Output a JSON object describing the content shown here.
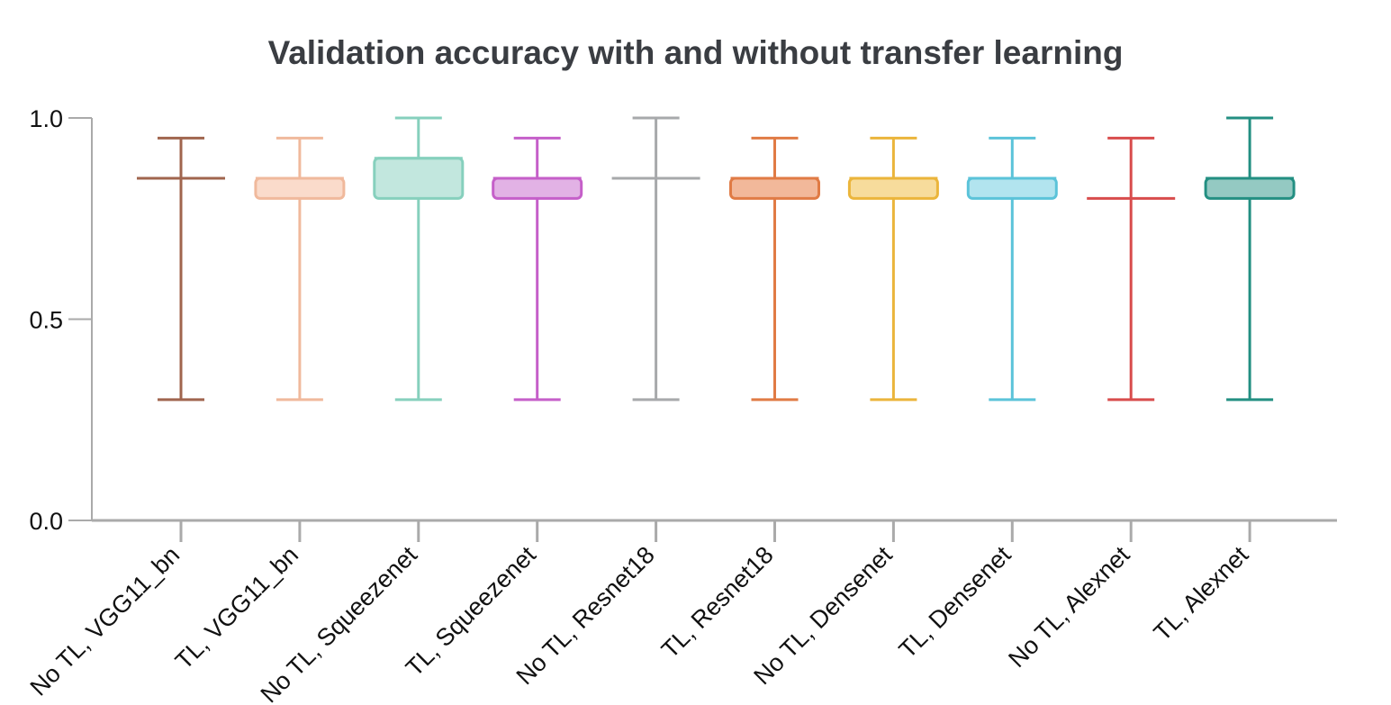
{
  "chart_data": {
    "type": "box",
    "title": "Validation accuracy with and without transfer learning",
    "xlabel": "",
    "ylabel": "",
    "ylim": [
      0.0,
      1.0
    ],
    "yticks": [
      {
        "value": 0.0,
        "label": "0.0"
      },
      {
        "value": 0.5,
        "label": "0.5"
      },
      {
        "value": 1.0,
        "label": "1.0"
      }
    ],
    "grid": false,
    "legend": "none",
    "categories": [
      "No TL, VGG11_bn",
      "TL, VGG11_bn",
      "No TL, Squeezenet",
      "TL, Squeezenet",
      "No TL, Resnet18",
      "TL, Resnet18",
      "No TL, Densenet",
      "TL, Densenet",
      "No TL, Alexnet",
      "TL, Alexnet"
    ],
    "boxes": [
      {
        "category": "No TL, VGG11_bn",
        "min": 0.3,
        "q1": 0.85,
        "median": 0.85,
        "q3": 0.85,
        "max": 0.95,
        "color": "#a0654e",
        "fill": "#d9b6a8"
      },
      {
        "category": "TL, VGG11_bn",
        "min": 0.3,
        "q1": 0.8,
        "median": 0.85,
        "q3": 0.85,
        "max": 0.95,
        "color": "#f0b99c",
        "fill": "#fadbcb"
      },
      {
        "category": "No TL, Squeezenet",
        "min": 0.3,
        "q1": 0.8,
        "median": 0.9,
        "q3": 0.9,
        "max": 1.0,
        "color": "#86d0bd",
        "fill": "#c2e7de"
      },
      {
        "category": "TL, Squeezenet",
        "min": 0.3,
        "q1": 0.8,
        "median": 0.85,
        "q3": 0.85,
        "max": 0.95,
        "color": "#c55fc9",
        "fill": "#e2b2e5"
      },
      {
        "category": "No TL, Resnet18",
        "min": 0.3,
        "q1": 0.85,
        "median": 0.85,
        "q3": 0.85,
        "max": 1.0,
        "color": "#a7a9ab",
        "fill": "#d3d4d5"
      },
      {
        "category": "TL, Resnet18",
        "min": 0.3,
        "q1": 0.8,
        "median": 0.85,
        "q3": 0.85,
        "max": 0.95,
        "color": "#e07b45",
        "fill": "#f2b89a"
      },
      {
        "category": "No TL, Densenet",
        "min": 0.3,
        "q1": 0.8,
        "median": 0.85,
        "q3": 0.85,
        "max": 0.95,
        "color": "#ebb53b",
        "fill": "#f7dc9c"
      },
      {
        "category": "TL, Densenet",
        "min": 0.3,
        "q1": 0.8,
        "median": 0.85,
        "q3": 0.85,
        "max": 0.95,
        "color": "#5bc3d9",
        "fill": "#b2e4ef"
      },
      {
        "category": "No TL, Alexnet",
        "min": 0.3,
        "q1": 0.8,
        "median": 0.8,
        "q3": 0.8,
        "max": 0.95,
        "color": "#d84c4c",
        "fill": "#eca7a7"
      },
      {
        "category": "TL, Alexnet",
        "min": 0.3,
        "q1": 0.8,
        "median": 0.85,
        "q3": 0.85,
        "max": 1.0,
        "color": "#238f82",
        "fill": "#94c9c2"
      }
    ]
  }
}
